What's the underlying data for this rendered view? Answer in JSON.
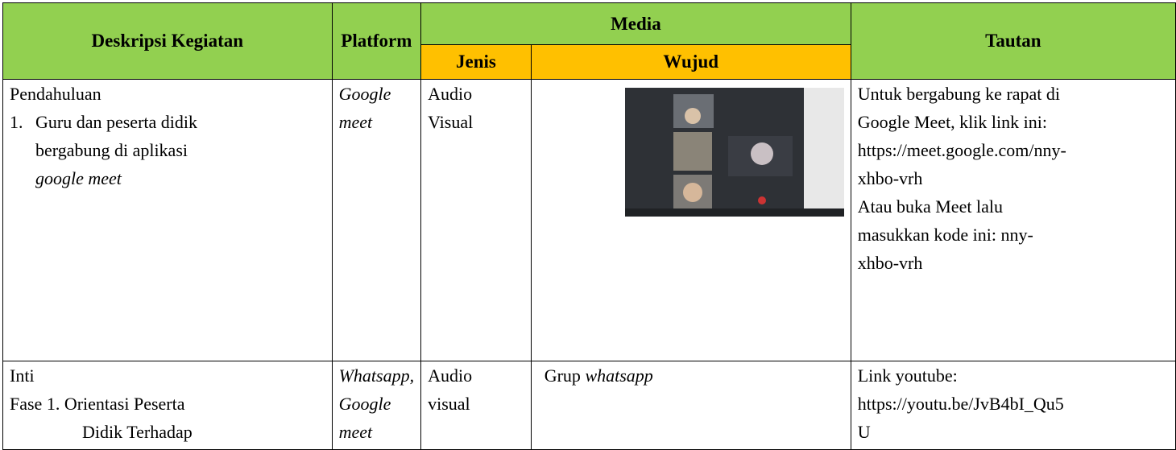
{
  "table": {
    "header": {
      "deskripsi": "Deskripsi Kegiatan",
      "platform": "Platform",
      "media": "Media",
      "jenis": "Jenis",
      "wujud": "Wujud",
      "tautan": "Tautan"
    },
    "rows": [
      {
        "deskripsi": {
          "section": "Pendahuluan",
          "item_number": "1.",
          "item_lines": [
            "Guru dan peserta didik",
            "bergabung di aplikasi"
          ],
          "item_italic": "google meet"
        },
        "platform": [
          "Google",
          "meet"
        ],
        "jenis": [
          "Audio",
          "Visual"
        ],
        "tautan": [
          "Untuk bergabung ke rapat di",
          "Google Meet, klik link ini:",
          "https://meet.google.com/nny-",
          "xhbo-vrh",
          "Atau buka Meet lalu",
          "masukkan kode ini: nny-",
          "xhbo-vrh"
        ]
      },
      {
        "deskripsi": {
          "section": "Inti",
          "lines": [
            "Fase 1. Orientasi Peserta",
            "Didik Terhadap"
          ]
        },
        "platform": [
          "Whatsapp,",
          "Google",
          "meet"
        ],
        "jenis": [
          "Audio",
          "visual"
        ],
        "wujud": {
          "text": "Grup",
          "italic": "whatsapp"
        },
        "tautan": [
          "Link youtube:",
          "https://youtu.be/JvB4bI_Qu5",
          "U"
        ]
      }
    ]
  }
}
